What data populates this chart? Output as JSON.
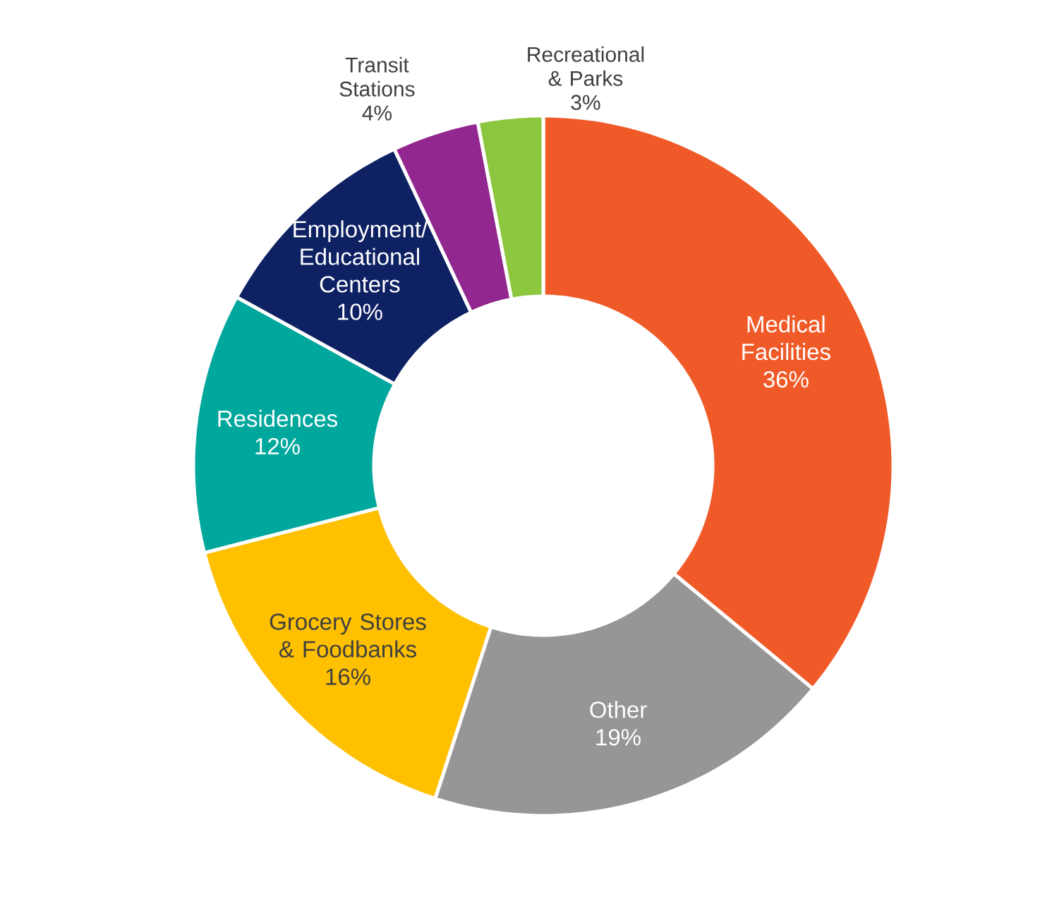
{
  "chart_data": {
    "type": "donut",
    "categories": [
      "Medical Facilities",
      "Other",
      "Grocery Stores & Foodbanks",
      "Residences",
      "Employment/ Educational Centers",
      "Transit Stations",
      "Recreational & Parks"
    ],
    "values": [
      36,
      19,
      16,
      12,
      10,
      4,
      3
    ],
    "value_labels": [
      "36%",
      "19%",
      "16%",
      "12%",
      "10%",
      "4%",
      "3%"
    ],
    "colors": [
      "#f05a28",
      "#969696",
      "#ffc000",
      "#00a79d",
      "#0e2163",
      "#92278f",
      "#8dc63f"
    ]
  }
}
